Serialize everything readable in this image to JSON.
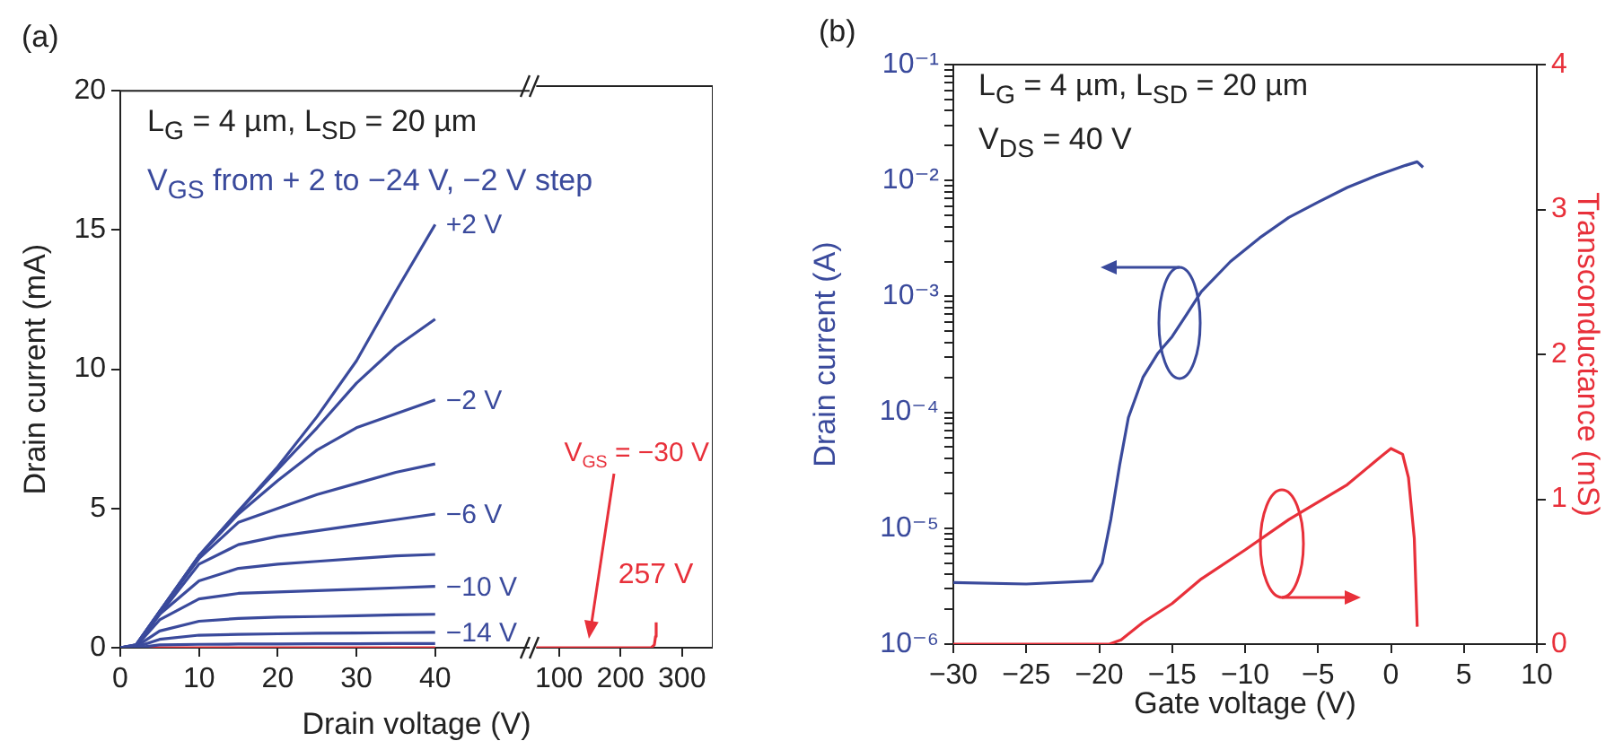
{
  "chart_data": [
    {
      "type": "line",
      "title": "(a)",
      "xlabel": "Drain voltage (V)",
      "ylabel": "Drain current (mA)",
      "xlim": [
        0,
        52
      ],
      "xticks": [
        0,
        10,
        20,
        30,
        40
      ],
      "ylim": [
        0,
        20
      ],
      "yticks": [
        0,
        5,
        10,
        15,
        20
      ],
      "grid": false,
      "legend": false,
      "marker": "none",
      "annotations": [
        "L$_{G}$ = 4 µm, L$_{SD}$ = 20 µm",
        "V$_{GS}$ from + 2  to −24 V, −2 V step"
      ],
      "x": [
        0,
        2,
        5,
        10,
        15,
        20,
        25,
        30,
        35,
        40
      ],
      "series": [
        {
          "name": "+2 V",
          "color": "#3a4a9c",
          "values": [
            0,
            0.1,
            1.3,
            3.3,
            4.9,
            6.5,
            8.3,
            10.3,
            12.8,
            15.2
          ]
        },
        {
          "color": "#3a4a9c",
          "values": [
            0,
            0.1,
            1.3,
            3.3,
            4.9,
            6.4,
            7.9,
            9.5,
            10.8,
            11.8
          ]
        },
        {
          "name": "−2 V",
          "color": "#3a4a9c",
          "values": [
            0,
            0.1,
            1.3,
            3.3,
            4.8,
            6.0,
            7.1,
            7.9,
            8.4,
            8.9
          ]
        },
        {
          "color": "#3a4a9c",
          "values": [
            0,
            0.08,
            1.3,
            3.2,
            4.5,
            5.0,
            5.5,
            5.9,
            6.3,
            6.6
          ]
        },
        {
          "name": "−6 V",
          "color": "#3a4a9c",
          "values": [
            0,
            0.07,
            1.2,
            3.0,
            3.7,
            4.0,
            4.2,
            4.4,
            4.6,
            4.8
          ]
        },
        {
          "color": "#3a4a9c",
          "values": [
            0,
            0.06,
            1.2,
            2.4,
            2.85,
            3.0,
            3.1,
            3.2,
            3.3,
            3.35
          ]
        },
        {
          "name": "−10 V",
          "color": "#3a4a9c",
          "values": [
            0,
            0.05,
            1.0,
            1.75,
            1.95,
            2.0,
            2.05,
            2.1,
            2.15,
            2.2
          ]
        },
        {
          "color": "#3a4a9c",
          "values": [
            0,
            0.04,
            0.6,
            0.95,
            1.05,
            1.1,
            1.12,
            1.15,
            1.18,
            1.2
          ]
        },
        {
          "name": "−14 V",
          "color": "#3a4a9c",
          "values": [
            0,
            0.02,
            0.3,
            0.45,
            0.48,
            0.5,
            0.52,
            0.53,
            0.54,
            0.55
          ]
        },
        {
          "color": "#3a4a9c",
          "values": [
            0,
            0,
            0.1,
            0.12,
            0.13,
            0.13,
            0.14,
            0.14,
            0.15,
            0.15
          ]
        },
        {
          "color": "#e8303a",
          "values": [
            0,
            0,
            0,
            0,
            0,
            0,
            0,
            0,
            0,
            0
          ]
        }
      ]
    },
    {
      "type": "line",
      "xlim": [
        63,
        350
      ],
      "xticks": [
        100,
        200,
        300
      ],
      "ylim": [
        0,
        20
      ],
      "yticks": [
        0,
        5,
        10,
        15,
        20
      ],
      "tick_labels": "x",
      "grid": false,
      "legend": false,
      "marker": "none",
      "annotations": [
        {
          "text": "257 V",
          "x": 257,
          "y": 0
        }
      ],
      "x": [
        63,
        250,
        255,
        257,
        258
      ],
      "series": [
        {
          "name": "V$_{GS}$ = −30 V",
          "color": "#e8303a",
          "values": [
            0,
            0,
            0.1,
            0.4,
            0.9
          ]
        }
      ]
    },
    {
      "type": "line",
      "title": "(b)",
      "xlabel": "Gate voltage (V)",
      "ylabel": "Drain current (A)",
      "y2label": "Transconductance (mS)",
      "log": "y",
      "grid": false,
      "legend": false,
      "marker": "none",
      "annotations": [
        "L$_{G}$ = 4 µm, L$_{SD}$ = 20 µm",
        "V$_{DS}$ = 40 V"
      ],
      "xlim": [
        -30,
        10
      ],
      "xticks": [
        {
          "value": -30,
          "label": "−30"
        },
        {
          "value": -25,
          "label": "−25"
        },
        {
          "value": -20,
          "label": "−20"
        },
        {
          "value": -15,
          "label": "−15"
        },
        {
          "value": -10,
          "label": "−10"
        },
        {
          "value": -5,
          "label": "−5"
        },
        0,
        5,
        10
      ],
      "ylim": [
        1e-06,
        0.1
      ],
      "yticks": [
        {
          "value": 1e-06,
          "label": "10⁻⁶"
        },
        {
          "value": 2e-06,
          "label": null
        },
        {
          "value": 3e-06,
          "label": null
        },
        {
          "value": 4e-06,
          "label": null
        },
        {
          "value": 5e-06,
          "label": null
        },
        {
          "value": 6e-06,
          "label": null
        },
        {
          "value": 7e-06,
          "label": null
        },
        {
          "value": 8e-06,
          "label": null
        },
        {
          "value": 9e-06,
          "label": null
        },
        {
          "value": 1e-05,
          "label": "10⁻⁵"
        },
        {
          "value": 2e-05,
          "label": null
        },
        {
          "value": 3e-05,
          "label": null
        },
        {
          "value": 4e-05,
          "label": null
        },
        {
          "value": 5e-05,
          "label": null
        },
        {
          "value": 6e-05,
          "label": null
        },
        {
          "value": 7e-05,
          "label": null
        },
        {
          "value": 8e-05,
          "label": null
        },
        {
          "value": 9e-05,
          "label": null
        },
        {
          "value": 0.0001,
          "label": "10⁻⁴"
        },
        {
          "value": 0.0002,
          "label": null
        },
        {
          "value": 0.0003,
          "label": null
        },
        {
          "value": 0.0004,
          "label": null
        },
        {
          "value": 0.0005,
          "label": null
        },
        {
          "value": 0.0006,
          "label": null
        },
        {
          "value": 0.0007,
          "label": null
        },
        {
          "value": 0.0008,
          "label": null
        },
        {
          "value": 0.0009,
          "label": null
        },
        {
          "value": 0.001,
          "label": "10⁻³"
        },
        {
          "value": 0.002,
          "label": null
        },
        {
          "value": 0.003,
          "label": null
        },
        {
          "value": 0.004,
          "label": null
        },
        {
          "value": 0.005,
          "label": null
        },
        {
          "value": 0.006,
          "label": null
        },
        {
          "value": 0.007,
          "label": null
        },
        {
          "value": 0.008,
          "label": null
        },
        {
          "value": 0.009,
          "label": null
        },
        {
          "value": 0.01,
          "label": "10⁻²"
        },
        {
          "value": 0.02,
          "label": null
        },
        {
          "value": 0.03,
          "label": null
        },
        {
          "value": 0.04,
          "label": null
        },
        {
          "value": 0.05,
          "label": null
        },
        {
          "value": 0.06,
          "label": null
        },
        {
          "value": 0.07,
          "label": null
        },
        {
          "value": 0.08,
          "label": null
        },
        {
          "value": 0.09,
          "label": null
        },
        {
          "value": 0.1,
          "label": "10⁻¹"
        }
      ],
      "y2lim": [
        0,
        4
      ],
      "y2ticks": [
        0,
        1,
        2,
        3,
        4
      ],
      "series": [
        {
          "color": "#3a4a9c",
          "x": [
            -30,
            -25,
            -20.5,
            -19.8,
            -19.2,
            -18.6,
            -18,
            -17,
            -16,
            -15,
            -14,
            -13,
            -11,
            -9,
            -7,
            -5,
            -3,
            -1,
            1,
            1.8,
            2.2
          ],
          "values": [
            3.4e-06,
            3.3e-06,
            3.5e-06,
            5e-06,
            1.2e-05,
            3.5e-05,
            9e-05,
            0.0002,
            0.00032,
            0.00045,
            0.0007,
            0.0011,
            0.002,
            0.0032,
            0.0048,
            0.0065,
            0.0087,
            0.011,
            0.0135,
            0.0145,
            0.013
          ]
        },
        {
          "color": "#e8303a",
          "axis": "y2",
          "x": [
            -30,
            -19.3,
            -18.5,
            -17,
            -15,
            -13,
            -10,
            -7,
            -3,
            -0.5,
            0,
            0.8,
            1.2,
            1.6,
            1.8
          ],
          "values": [
            0,
            0,
            0.03,
            0.15,
            0.28,
            0.45,
            0.65,
            0.86,
            1.1,
            1.31,
            1.35,
            1.31,
            1.15,
            0.73,
            0.12
          ]
        }
      ]
    }
  ]
}
